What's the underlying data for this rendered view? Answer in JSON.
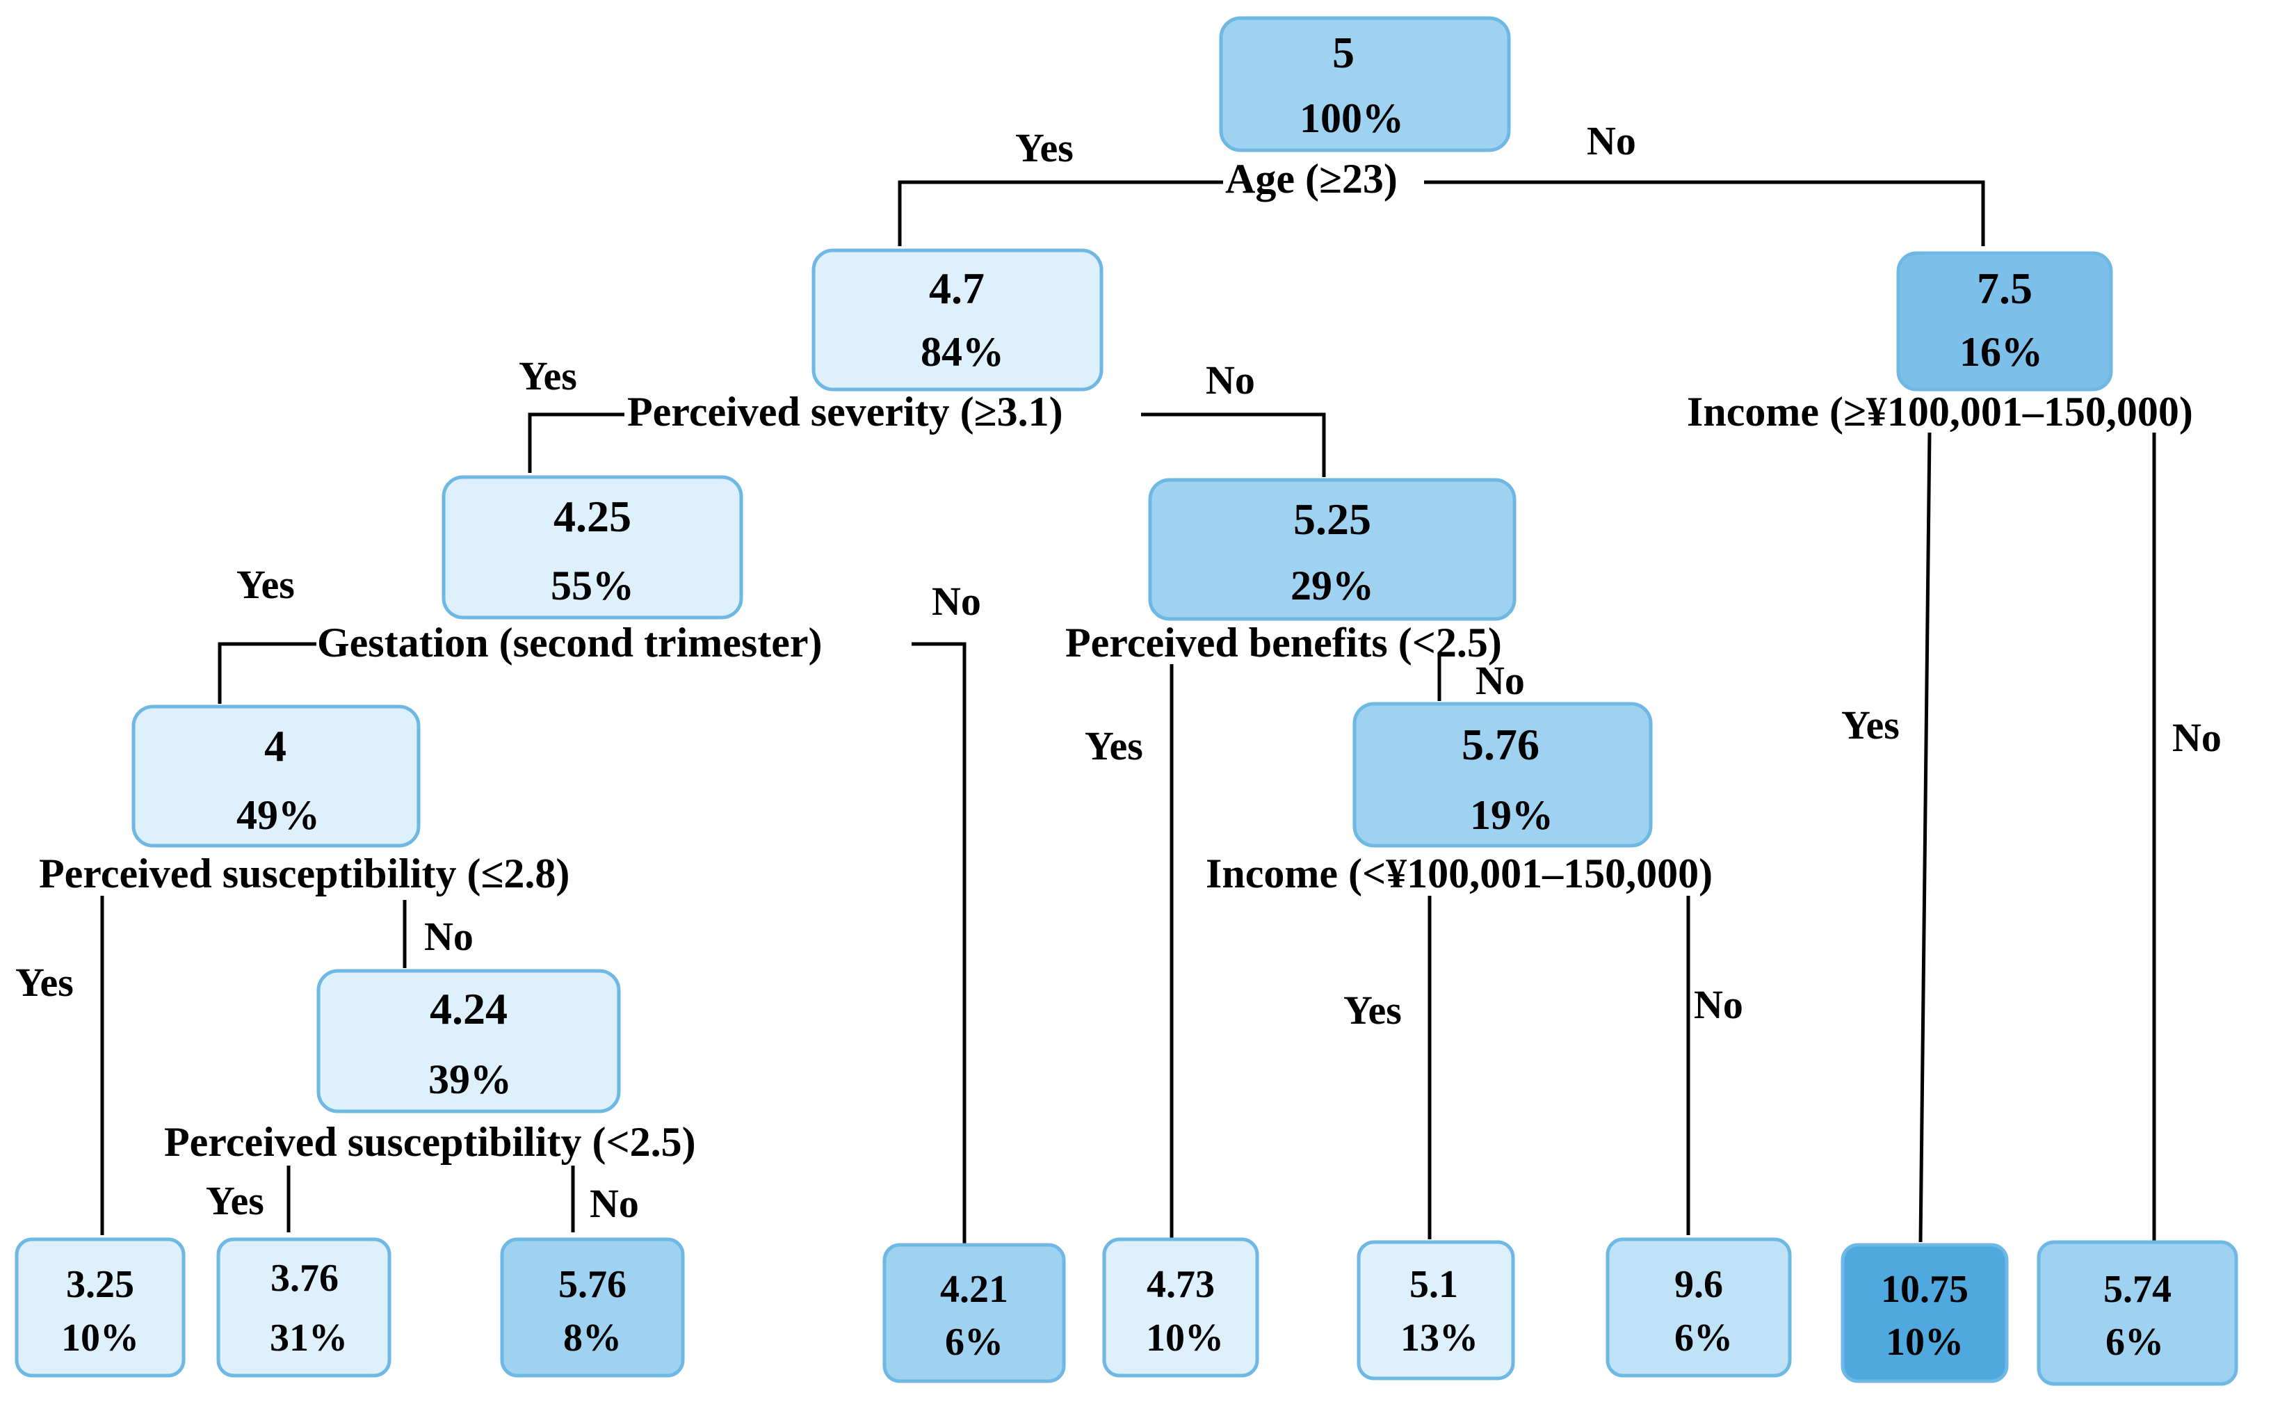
{
  "palette": {
    "level_1": "#ddf0fb",
    "level_2": "#bfe2f7",
    "level_3": "#9fd2f0",
    "level_4": "#7cc0ea",
    "level_5": "#4fa9de",
    "border": "#6fb8e4"
  },
  "nodes": [
    {
      "id": "root",
      "value": "5",
      "percent": "100%",
      "shade": "level_3"
    },
    {
      "id": "n_4_7",
      "value": "4.7",
      "percent": "84%",
      "shade": "level_1"
    },
    {
      "id": "n_7_5",
      "value": "7.5",
      "percent": "16%",
      "shade": "level_4"
    },
    {
      "id": "n_4_25",
      "value": "4.25",
      "percent": "55%",
      "shade": "level_1"
    },
    {
      "id": "n_5_25",
      "value": "5.25",
      "percent": "29%",
      "shade": "level_3"
    },
    {
      "id": "n_4",
      "value": "4",
      "percent": "49%",
      "shade": "level_1"
    },
    {
      "id": "n_5_76",
      "value": "5.76",
      "percent": "19%",
      "shade": "level_3"
    },
    {
      "id": "n_4_24",
      "value": "4.24",
      "percent": "39%",
      "shade": "level_1"
    }
  ],
  "leaves": [
    {
      "id": "leaf_1",
      "value": "3.25",
      "percent": "10%",
      "shade": "level_1"
    },
    {
      "id": "leaf_2",
      "value": "3.76",
      "percent": "31%",
      "shade": "level_1"
    },
    {
      "id": "leaf_3",
      "value": "5.76",
      "percent": "8%",
      "shade": "level_3"
    },
    {
      "id": "leaf_4",
      "value": "4.21",
      "percent": "6%",
      "shade": "level_3"
    },
    {
      "id": "leaf_5",
      "value": "4.73",
      "percent": "10%",
      "shade": "level_1"
    },
    {
      "id": "leaf_6",
      "value": "5.1",
      "percent": "13%",
      "shade": "level_1"
    },
    {
      "id": "leaf_7",
      "value": "9.6",
      "percent": "6%",
      "shade": "level_2"
    },
    {
      "id": "leaf_8",
      "value": "10.75",
      "percent": "10%",
      "shade": "level_5"
    },
    {
      "id": "leaf_9",
      "value": "5.74",
      "percent": "6%",
      "shade": "level_3"
    }
  ],
  "splits": {
    "age": "Age (≥23)",
    "perceived_severity": "Perceived severity (≥3.1)",
    "income_high": "Income (≥¥100,001–150,000)",
    "gestation": "Gestation (second trimester)",
    "perceived_benefits": "Perceived benefits (<2.5)",
    "perceived_susceptibility_1": "Perceived susceptibility (≤2.8)",
    "income_low": "Income (<¥100,001–150,000)",
    "perceived_susceptibility_2": "Perceived susceptibility (<2.5)"
  },
  "branch_labels": {
    "yes": "Yes",
    "no": "No"
  }
}
